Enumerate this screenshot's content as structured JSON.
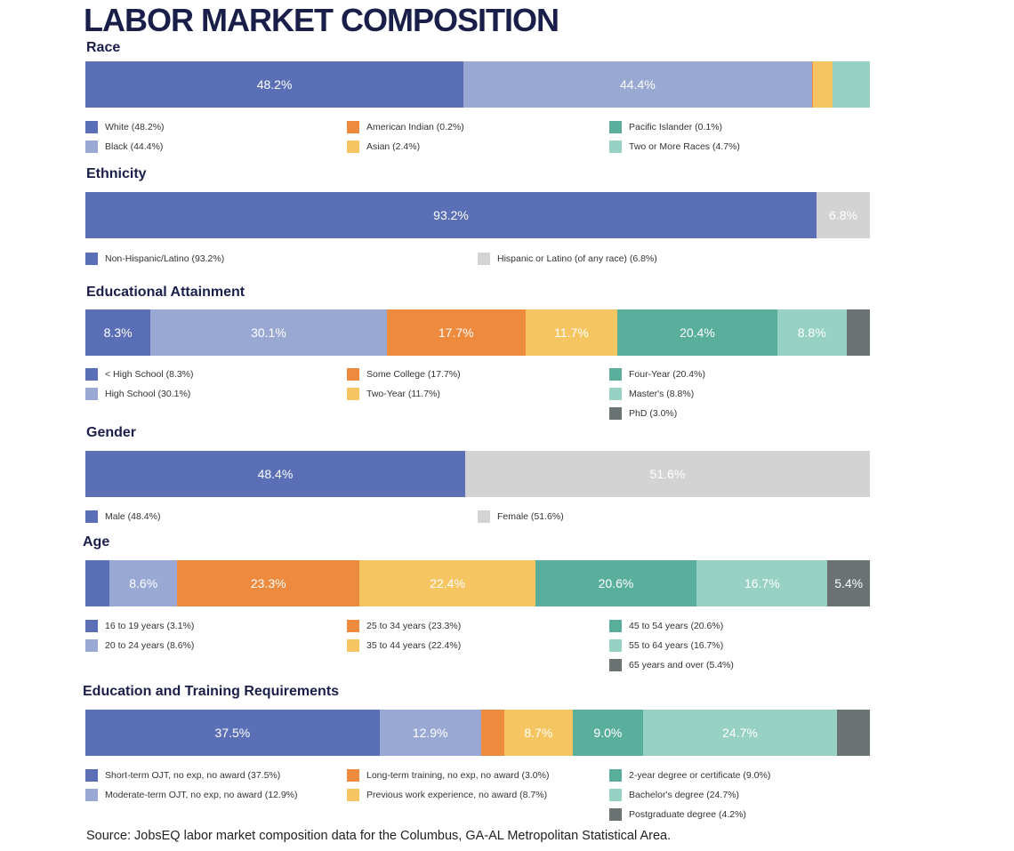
{
  "title": "LABOR MARKET COMPOSITION",
  "source": "Source: JobsEQ labor market composition data for the Columbus, GA-AL Metropolitan Statistical Area.",
  "colors": {
    "dark_blue": "#5a6fb5",
    "light_blue": "#9aa9d4",
    "orange": "#ee8a3e",
    "yellow": "#f5c562",
    "teal": "#5aae9c",
    "light_teal": "#97d1c3",
    "dark_grey": "#6b7274",
    "light_grey": "#d3d3d3"
  },
  "chart_data": [
    {
      "type": "bar",
      "stacked": true,
      "orientation": "horizontal",
      "title": "Race",
      "unit": "%",
      "series": [
        {
          "name": "White",
          "value": 48.2,
          "legend": "White (48.2%)",
          "color": "#5a6fb5"
        },
        {
          "name": "Black",
          "value": 44.4,
          "legend": "Black (44.4%)",
          "color": "#9aa9d4"
        },
        {
          "name": "American Indian",
          "value": 0.2,
          "legend": "American Indian (0.2%)",
          "color": "#ee8a3e"
        },
        {
          "name": "Asian",
          "value": 2.4,
          "legend": "Asian (2.4%)",
          "color": "#f5c562"
        },
        {
          "name": "Pacific Islander",
          "value": 0.1,
          "legend": "Pacific Islander (0.1%)",
          "color": "#5aae9c"
        },
        {
          "name": "Two or More Races",
          "value": 4.7,
          "legend": "Two or More Races (4.7%)",
          "color": "#97d1c3"
        }
      ]
    },
    {
      "type": "bar",
      "stacked": true,
      "orientation": "horizontal",
      "title": "Ethnicity",
      "unit": "%",
      "series": [
        {
          "name": "Non-Hispanic/Latino",
          "value": 93.2,
          "legend": "Non-Hispanic/Latino (93.2%)",
          "color": "#5a6fb5"
        },
        {
          "name": "Hispanic or Latino (of any race)",
          "value": 6.8,
          "legend": "Hispanic or Latino (of any race) (6.8%)",
          "color": "#d3d3d3"
        }
      ]
    },
    {
      "type": "bar",
      "stacked": true,
      "orientation": "horizontal",
      "title": "Educational Attainment",
      "unit": "%",
      "series": [
        {
          "name": "< High School",
          "value": 8.3,
          "legend": "< High School (8.3%)",
          "color": "#5a6fb5"
        },
        {
          "name": "High School",
          "value": 30.1,
          "legend": "High School (30.1%)",
          "color": "#9aa9d4"
        },
        {
          "name": "Some College",
          "value": 17.7,
          "legend": "Some College (17.7%)",
          "color": "#ee8a3e"
        },
        {
          "name": "Two-Year",
          "value": 11.7,
          "legend": "Two-Year (11.7%)",
          "color": "#f5c562"
        },
        {
          "name": "Four-Year",
          "value": 20.4,
          "legend": "Four-Year (20.4%)",
          "color": "#5aae9c"
        },
        {
          "name": "Master's",
          "value": 8.8,
          "legend": "Master's (8.8%)",
          "color": "#97d1c3"
        },
        {
          "name": "PhD",
          "value": 3.0,
          "legend": "PhD (3.0%)",
          "color": "#6b7274"
        }
      ]
    },
    {
      "type": "bar",
      "stacked": true,
      "orientation": "horizontal",
      "title": "Gender",
      "unit": "%",
      "series": [
        {
          "name": "Male",
          "value": 48.4,
          "legend": "Male (48.4%)",
          "color": "#5a6fb5"
        },
        {
          "name": "Female",
          "value": 51.6,
          "legend": "Female (51.6%)",
          "color": "#d3d3d3"
        }
      ]
    },
    {
      "type": "bar",
      "stacked": true,
      "orientation": "horizontal",
      "title": "Age",
      "unit": "%",
      "series": [
        {
          "name": "16 to 19 years",
          "value": 3.1,
          "legend": "16 to 19 years (3.1%)",
          "color": "#5a6fb5"
        },
        {
          "name": "20 to 24 years",
          "value": 8.6,
          "legend": "20 to 24 years (8.6%)",
          "color": "#9aa9d4"
        },
        {
          "name": "25 to 34 years",
          "value": 23.3,
          "legend": "25 to 34 years (23.3%)",
          "color": "#ee8a3e"
        },
        {
          "name": "35 to 44 years",
          "value": 22.4,
          "legend": "35 to 44 years (22.4%)",
          "color": "#f5c562"
        },
        {
          "name": "45 to 54 years",
          "value": 20.6,
          "legend": "45 to 54 years (20.6%)",
          "color": "#5aae9c"
        },
        {
          "name": "55 to 64 years",
          "value": 16.7,
          "legend": "55 to 64 years (16.7%)",
          "color": "#97d1c3"
        },
        {
          "name": "65 years and over",
          "value": 5.4,
          "legend": "65 years and over (5.4%)",
          "color": "#6b7274"
        }
      ]
    },
    {
      "type": "bar",
      "stacked": true,
      "orientation": "horizontal",
      "title": "Education and Training Requirements",
      "unit": "%",
      "series": [
        {
          "name": "Short-term OJT, no exp, no award",
          "value": 37.5,
          "legend": "Short-term OJT, no exp, no award (37.5%)",
          "color": "#5a6fb5"
        },
        {
          "name": "Moderate-term OJT, no exp, no award",
          "value": 12.9,
          "legend": "Moderate-term OJT, no exp, no award (12.9%)",
          "color": "#9aa9d4"
        },
        {
          "name": "Long-term training, no exp, no award",
          "value": 3.0,
          "legend": "Long-term training, no exp, no award (3.0%)",
          "color": "#ee8a3e"
        },
        {
          "name": "Previous work experience, no award",
          "value": 8.7,
          "legend": "Previous work experience, no award (8.7%)",
          "color": "#f5c562"
        },
        {
          "name": "2-year degree or certificate",
          "value": 9.0,
          "legend": "2-year degree or certificate (9.0%)",
          "color": "#5aae9c"
        },
        {
          "name": "Bachelor's degree",
          "value": 24.7,
          "legend": "Bachelor's degree (24.7%)",
          "color": "#97d1c3"
        },
        {
          "name": "Postgraduate degree",
          "value": 4.2,
          "legend": "Postgraduate degree (4.2%)",
          "color": "#6b7274"
        }
      ]
    }
  ]
}
